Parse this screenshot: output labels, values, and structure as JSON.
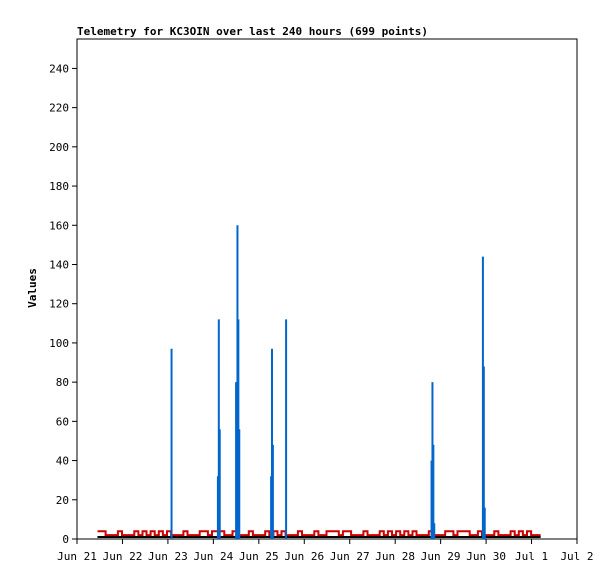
{
  "chart_data": {
    "type": "line",
    "title": "Telemetry for KC3OIN over last 240 hours (699 points)",
    "xlabel": "",
    "ylabel": "Values",
    "xlim": [
      0,
      11
    ],
    "ylim": [
      0,
      255
    ],
    "x_ticks": [
      {
        "x": 0,
        "label": "Jun 21"
      },
      {
        "x": 1,
        "label": "Jun 22"
      },
      {
        "x": 2,
        "label": "Jun 23"
      },
      {
        "x": 3,
        "label": "Jun 24"
      },
      {
        "x": 4,
        "label": "Jun 25"
      },
      {
        "x": 5,
        "label": "Jun 26"
      },
      {
        "x": 6,
        "label": "Jun 27"
      },
      {
        "x": 7,
        "label": "Jun 28"
      },
      {
        "x": 8,
        "label": "Jun 29"
      },
      {
        "x": 9,
        "label": "Jun 30"
      },
      {
        "x": 10,
        "label": "Jul 1"
      },
      {
        "x": 11,
        "label": "Jul 2"
      }
    ],
    "y_ticks": [
      0,
      20,
      40,
      60,
      80,
      100,
      120,
      140,
      160,
      180,
      200,
      220,
      240
    ],
    "grid": false,
    "series": [
      {
        "color": "#0066cc",
        "style": "spikes",
        "points": [
          {
            "x": 2.08,
            "y": 97
          },
          {
            "x": 3.1,
            "y": 32
          },
          {
            "x": 3.12,
            "y": 112
          },
          {
            "x": 3.14,
            "y": 56
          },
          {
            "x": 3.5,
            "y": 80
          },
          {
            "x": 3.53,
            "y": 160
          },
          {
            "x": 3.55,
            "y": 112
          },
          {
            "x": 3.57,
            "y": 56
          },
          {
            "x": 4.27,
            "y": 32
          },
          {
            "x": 4.29,
            "y": 97
          },
          {
            "x": 4.31,
            "y": 48
          },
          {
            "x": 4.6,
            "y": 112
          },
          {
            "x": 7.8,
            "y": 40
          },
          {
            "x": 7.82,
            "y": 80
          },
          {
            "x": 7.84,
            "y": 48
          },
          {
            "x": 7.86,
            "y": 8
          },
          {
            "x": 8.93,
            "y": 144
          },
          {
            "x": 8.95,
            "y": 88
          },
          {
            "x": 8.97,
            "y": 16
          }
        ]
      },
      {
        "color": "#cc0000",
        "style": "step",
        "x_start": 0.45,
        "x_end": 10.2,
        "levels": [
          2,
          4
        ],
        "baseline": 3
      },
      {
        "color": "#000000",
        "style": "flat",
        "x_start": 0.45,
        "x_end": 10.2,
        "value": 1
      }
    ]
  }
}
